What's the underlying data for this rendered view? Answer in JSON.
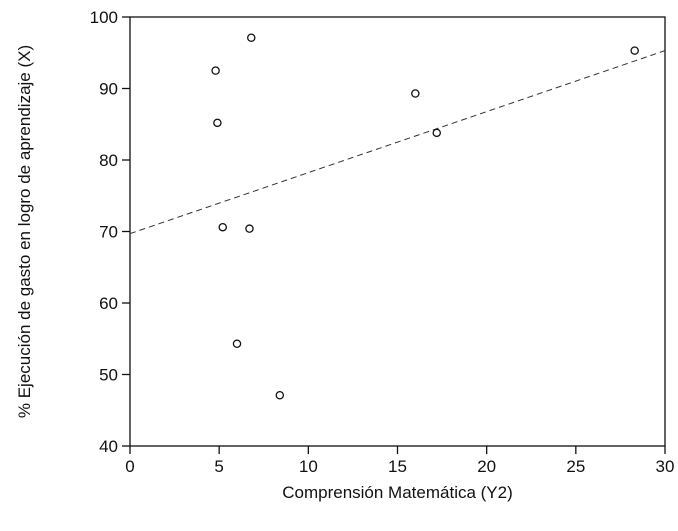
{
  "chart_data": {
    "type": "scatter",
    "title": "",
    "xlabel": "Comprensión Matemática (Y2)",
    "ylabel": "% Ejecución de gasto en logro de aprendizaje (X)",
    "xlim": [
      0,
      30
    ],
    "ylim": [
      40,
      100
    ],
    "xticks": [
      0,
      5,
      10,
      15,
      20,
      25,
      30
    ],
    "yticks": [
      40,
      50,
      60,
      70,
      80,
      90,
      100
    ],
    "grid": false,
    "points": [
      {
        "x": 4.8,
        "y": 92.5
      },
      {
        "x": 6.8,
        "y": 97.1
      },
      {
        "x": 4.9,
        "y": 85.2
      },
      {
        "x": 5.2,
        "y": 70.6
      },
      {
        "x": 6.7,
        "y": 70.4
      },
      {
        "x": 6.0,
        "y": 54.3
      },
      {
        "x": 8.4,
        "y": 47.1
      },
      {
        "x": 16.0,
        "y": 89.3
      },
      {
        "x": 17.2,
        "y": 83.8
      },
      {
        "x": 28.3,
        "y": 95.3
      }
    ],
    "trendline": {
      "style": "dashed",
      "x": [
        0,
        30
      ],
      "y": [
        69.7,
        95.3
      ]
    },
    "colors": {
      "axis": "#111111",
      "marker": "#111111",
      "trend": "#333333"
    }
  }
}
